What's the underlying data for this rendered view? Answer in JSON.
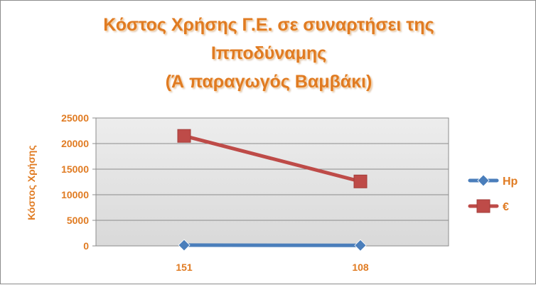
{
  "chart_data": {
    "type": "line",
    "title_lines": [
      "Κόστος Χρήσης Γ.Ε. σε συναρτήσει της",
      "Ιπποδύναμης",
      "(Ά παραγωγός Βαμβάκι)"
    ],
    "ylabel": "Κόστος Χρήσης",
    "xlabel": "",
    "categories": [
      "151",
      "108"
    ],
    "ylim": [
      0,
      25000
    ],
    "yticks": [
      "0",
      "5000",
      "10000",
      "15000",
      "20000",
      "25000"
    ],
    "grid": true,
    "legend_position": "right",
    "series": [
      {
        "name": "Hp",
        "values": [
          151,
          108
        ],
        "color": "#4a7ebb",
        "marker": "diamond"
      },
      {
        "name": "€",
        "values": [
          21500,
          12600
        ],
        "color": "#be4b48",
        "marker": "square"
      }
    ]
  },
  "colors": {
    "title": "#e07b22",
    "axis_text": "#e07b22",
    "plot_background": "#d9d9d9",
    "gridline": "#8c8c8c"
  }
}
